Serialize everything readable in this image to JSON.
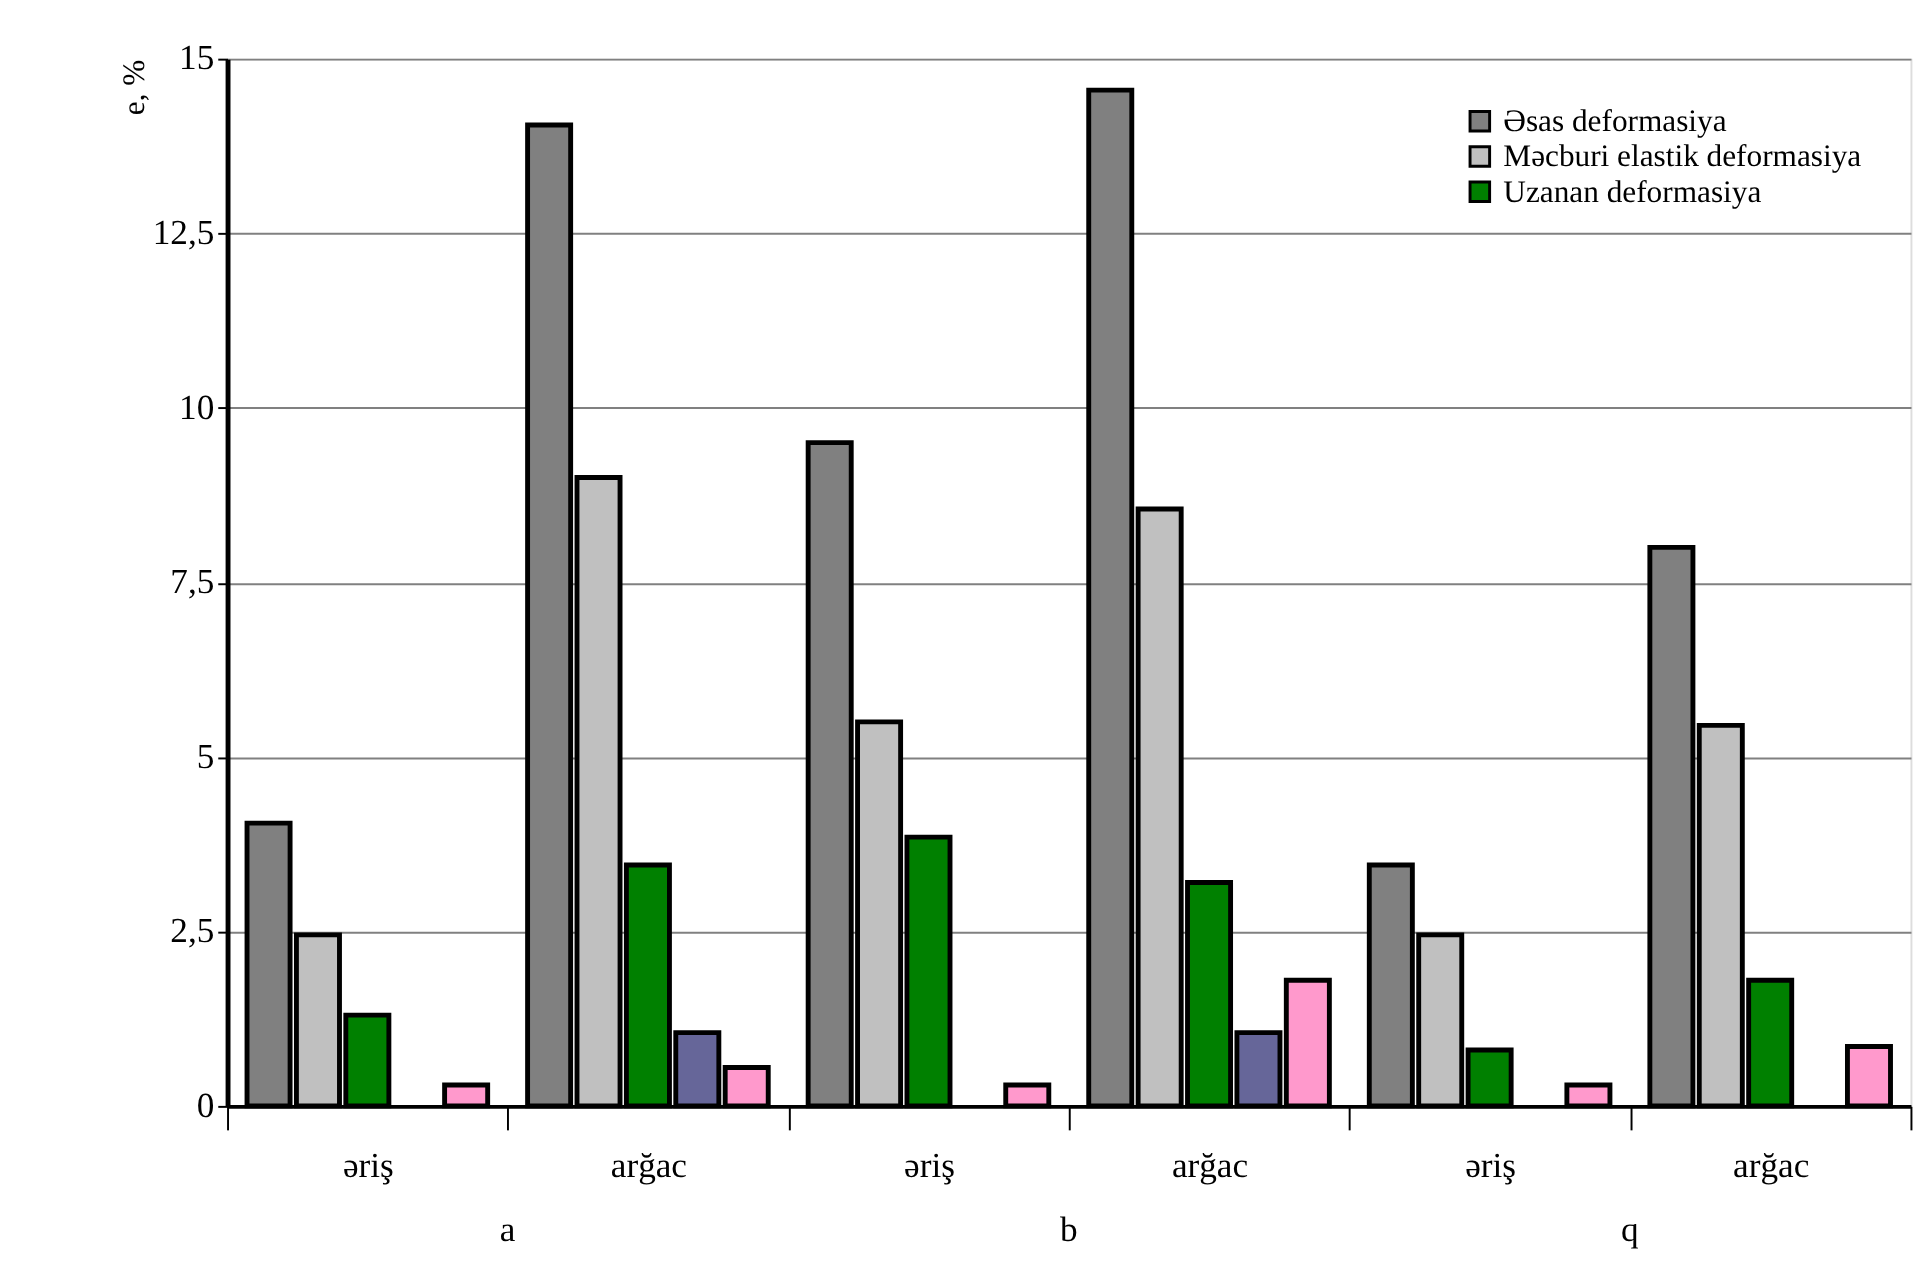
{
  "chart_data": {
    "type": "bar",
    "ylabel": "e, %",
    "categories": [
      "əriş",
      "arğac",
      "əriş",
      "arğac",
      "əriş",
      "arğac"
    ],
    "series": [
      {
        "name": "Əsas deformasiya",
        "color": "#808080",
        "values": [
          4.05,
          14.05,
          9.5,
          14.55,
          3.45,
          8.0
        ]
      },
      {
        "name": "Məcburi elastik deformasiya",
        "color": "#c0c0c0",
        "values": [
          2.45,
          9.0,
          5.5,
          8.55,
          2.45,
          5.45
        ]
      },
      {
        "name": "Uzanan deformasiya",
        "color": "#008000",
        "values": [
          1.3,
          3.45,
          3.85,
          3.2,
          0.8,
          1.8
        ]
      },
      {
        "color": "#666699",
        "values": [
          null,
          1.05,
          null,
          1.05,
          null,
          null
        ]
      },
      {
        "color": "#ff99cc",
        "values": [
          0.3,
          0.55,
          0.3,
          1.8,
          0.3,
          0.85
        ]
      }
    ],
    "ylim": [
      0,
      15
    ],
    "yticks": [
      0,
      {
        "value": 2.5,
        "label": "2,5"
      },
      5,
      {
        "value": 7.5,
        "label": "7,5"
      },
      10,
      {
        "value": 12.5,
        "label": "12,5"
      },
      15
    ],
    "grid": "y",
    "legend": "top right",
    "annotations": [
      "a",
      "b",
      "q"
    ]
  }
}
